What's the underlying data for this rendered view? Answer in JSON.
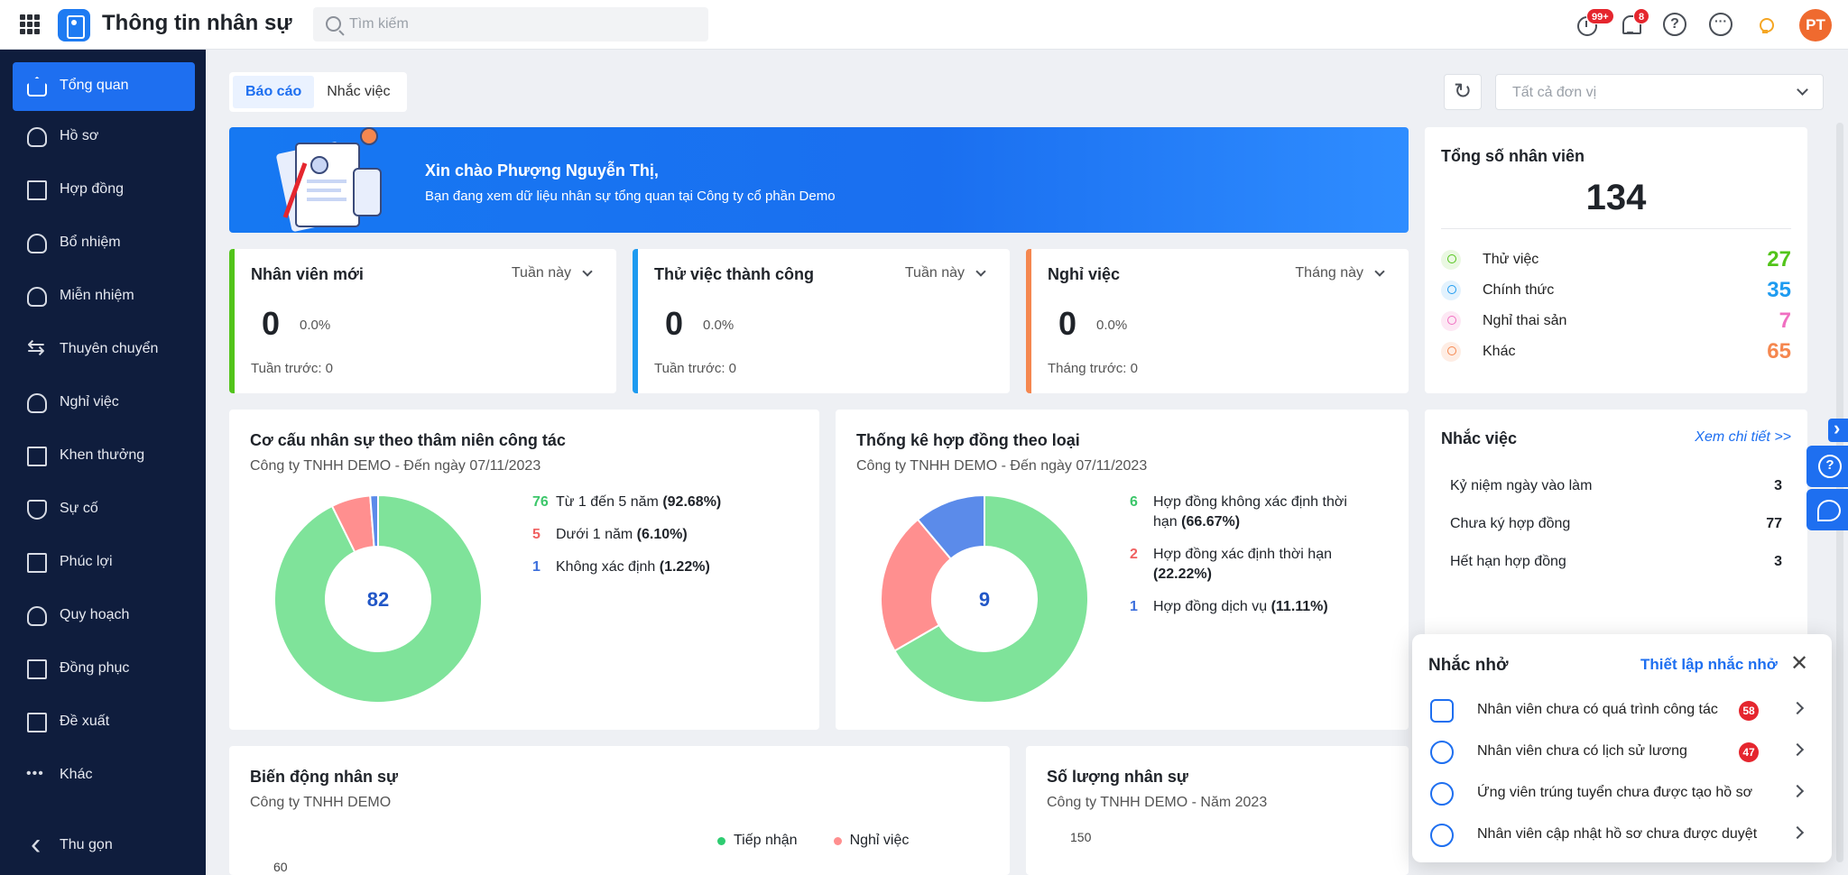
{
  "header": {
    "app_title": "Thông tin nhân sự",
    "search_placeholder": "Tìm kiếm",
    "alarm_badge": "99+",
    "bell_badge": "8",
    "avatar_initials": "PT"
  },
  "sidebar": {
    "items": [
      {
        "label": "Tổng quan",
        "icon": "home-icon"
      },
      {
        "label": "Hồ sơ",
        "icon": "user-icon"
      },
      {
        "label": "Hợp đồng",
        "icon": "document-icon"
      },
      {
        "label": "Bổ nhiệm",
        "icon": "user-add-icon"
      },
      {
        "label": "Miễn nhiệm",
        "icon": "user-remove-icon"
      },
      {
        "label": "Thuyên chuyển",
        "icon": "transfer-icon"
      },
      {
        "label": "Nghỉ việc",
        "icon": "user-leave-icon"
      },
      {
        "label": "Khen thưởng",
        "icon": "award-icon"
      },
      {
        "label": "Sự cố",
        "icon": "shield-icon"
      },
      {
        "label": "Phúc lợi",
        "icon": "benefit-icon"
      },
      {
        "label": "Quy hoạch",
        "icon": "users-icon"
      },
      {
        "label": "Đồng phục",
        "icon": "shirt-icon"
      },
      {
        "label": "Đề xuất",
        "icon": "proposal-icon"
      },
      {
        "label": "Khác",
        "icon": "more-dots-icon"
      }
    ],
    "collapse_label": "Thu gọn"
  },
  "tabs": [
    "Báo cáo",
    "Nhắc việc"
  ],
  "unit_select": "Tất cả đơn vị",
  "banner": {
    "greeting": "Xin chào Phượng Nguyễn Thị,",
    "subtitle": "Bạn đang xem dữ liệu nhân sự tổng quan tại Công ty cổ phần Demo"
  },
  "stats": [
    {
      "title": "Nhân viên mới",
      "period": "Tuần này",
      "value": "0",
      "pct": "0.0%",
      "prev": "Tuần trước: 0",
      "color": "#52c41a"
    },
    {
      "title": "Thử việc thành công",
      "period": "Tuần này",
      "value": "0",
      "pct": "0.0%",
      "prev": "Tuần trước: 0",
      "color": "#1e9bf0"
    },
    {
      "title": "Nghỉ việc",
      "period": "Tháng này",
      "value": "0",
      "pct": "0.0%",
      "prev": "Tháng trước: 0",
      "color": "#f5874f"
    }
  ],
  "total": {
    "title": "Tổng số nhân viên",
    "value": "134",
    "rows": [
      {
        "label": "Thử việc",
        "value": "27",
        "color": "#52c41a"
      },
      {
        "label": "Chính thức",
        "value": "35",
        "color": "#1e9bf0"
      },
      {
        "label": "Nghỉ thai sản",
        "value": "7",
        "color": "#f06fc1"
      },
      {
        "label": "Khác",
        "value": "65",
        "color": "#f5874f"
      }
    ]
  },
  "chart_data": [
    {
      "type": "pie",
      "title": "Cơ cấu nhân sự theo thâm niên công tác",
      "subtitle": "Công ty TNHH DEMO - Đến ngày 07/11/2023",
      "total": "82",
      "slices": [
        {
          "count": "76",
          "label": "Từ 1 đến 5 năm",
          "pct": "(92.68%)",
          "value": 76,
          "color": "#7fe39a",
          "count_color": "#3cc66a"
        },
        {
          "count": "5",
          "label": "Dưới 1 năm",
          "pct": "(6.10%)",
          "value": 5,
          "color": "#ff8f8f",
          "count_color": "#f06060"
        },
        {
          "count": "1",
          "label": "Không xác định",
          "pct": "(1.22%)",
          "value": 1,
          "color": "#5b8bea",
          "count_color": "#3c6fdc"
        }
      ]
    },
    {
      "type": "pie",
      "title": "Thống kê hợp đồng theo loại",
      "subtitle": "Công ty TNHH DEMO - Đến ngày 07/11/2023",
      "total": "9",
      "slices": [
        {
          "count": "6",
          "label": "Hợp đồng không xác định thời hạn",
          "pct": "(66.67%)",
          "value": 6,
          "color": "#7fe39a",
          "count_color": "#3cc66a"
        },
        {
          "count": "2",
          "label": "Hợp đồng xác định thời hạn",
          "pct": "(22.22%)",
          "value": 2,
          "color": "#ff8f8f",
          "count_color": "#f06060"
        },
        {
          "count": "1",
          "label": "Hợp đồng dịch vụ",
          "pct": "(11.11%)",
          "value": 1,
          "color": "#5b8bea",
          "count_color": "#3c6fdc"
        }
      ]
    }
  ],
  "remind": {
    "title": "Nhắc việc",
    "link": "Xem chi tiết >>",
    "rows": [
      {
        "label": "Kỷ niệm ngày vào làm",
        "value": "3"
      },
      {
        "label": "Chưa ký hợp đồng",
        "value": "77"
      },
      {
        "label": "Hết hạn hợp đồng",
        "value": "3"
      }
    ]
  },
  "bottom": {
    "left": {
      "title": "Biến động nhân sự",
      "subtitle": "Công ty TNHH DEMO",
      "legend": [
        "Tiếp nhận",
        "Nghỉ việc"
      ],
      "legend_colors": [
        "#2ecc71",
        "#ff8f8f"
      ],
      "y_tick": "60"
    },
    "right": {
      "title": "Số lượng nhân sự",
      "subtitle": "Công ty TNHH DEMO - Năm 2023",
      "y_tick": "150"
    }
  },
  "popup": {
    "title": "Nhắc nhở",
    "link": "Thiết lập nhắc nhở",
    "rows": [
      {
        "label": "Nhân viên chưa có quá trình công tác",
        "badge": "58",
        "icon": "briefcase-icon"
      },
      {
        "label": "Nhân viên chưa có lịch sử lương",
        "badge": "47",
        "icon": "coins-icon"
      },
      {
        "label": "Ứng viên trúng tuyển chưa được tạo hồ sơ",
        "badge": "",
        "icon": "user-plus-icon"
      },
      {
        "label": "Nhân viên cập nhật hồ sơ chưa được duyệt",
        "badge": "",
        "icon": "check-circle-icon"
      }
    ]
  }
}
